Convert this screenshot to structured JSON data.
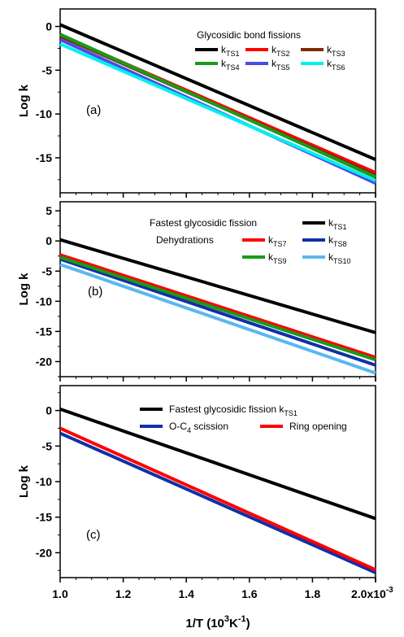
{
  "chart_data": [
    {
      "type": "line",
      "panel_label": "(a)",
      "ylabel": "Log k",
      "xlim": [
        1.0,
        2.0
      ],
      "ylim": [
        -19,
        2
      ],
      "yticks": [
        0,
        -5,
        -10,
        -15
      ],
      "ytick_labels": [
        "0",
        "-5",
        "-10",
        "-15"
      ],
      "legend": {
        "title": "Glycosidic bond fissions",
        "placement": "top-right"
      },
      "series": [
        {
          "name": "k",
          "sub": "TS1",
          "color": "#000000",
          "x": [
            1.0,
            2.0
          ],
          "y": [
            0.2,
            -15.2
          ]
        },
        {
          "name": "k",
          "sub": "TS2",
          "color": "#ff0000",
          "x": [
            1.0,
            2.0
          ],
          "y": [
            -1.0,
            -16.7
          ]
        },
        {
          "name": "k",
          "sub": "TS3",
          "color": "#7b2e00",
          "x": [
            1.0,
            2.0
          ],
          "y": [
            -1.1,
            -17.0
          ]
        },
        {
          "name": "k",
          "sub": "TS4",
          "color": "#1a9a1a",
          "x": [
            1.0,
            2.0
          ],
          "y": [
            -0.9,
            -17.2
          ]
        },
        {
          "name": "k",
          "sub": "TS5",
          "color": "#4a4ae8",
          "x": [
            1.0,
            2.0
          ],
          "y": [
            -1.5,
            -17.9
          ]
        },
        {
          "name": "k",
          "sub": "TS6",
          "color": "#00f0f0",
          "x": [
            1.0,
            2.0
          ],
          "y": [
            -2.0,
            -17.6
          ]
        }
      ]
    },
    {
      "type": "line",
      "panel_label": "(b)",
      "ylabel": "Log k",
      "xlim": [
        1.0,
        2.0
      ],
      "ylim": [
        -22.5,
        6.5
      ],
      "yticks": [
        5,
        0,
        -5,
        -10,
        -15,
        -20
      ],
      "ytick_labels": [
        "5",
        "0",
        "-5",
        "-10",
        "-15",
        "-20"
      ],
      "legend": {
        "line1": "Fastest glycosidic fission",
        "line2": "Dehydrations",
        "placement": "top-right"
      },
      "series": [
        {
          "name": "k",
          "sub": "TS1",
          "color": "#000000",
          "x": [
            1.0,
            2.0
          ],
          "y": [
            0.2,
            -15.2
          ]
        },
        {
          "name": "k",
          "sub": "TS7",
          "color": "#ff0000",
          "x": [
            1.0,
            2.0
          ],
          "y": [
            -2.3,
            -19.3
          ]
        },
        {
          "name": "k",
          "sub": "TS8",
          "color": "#1030a8",
          "x": [
            1.0,
            2.0
          ],
          "y": [
            -3.0,
            -20.6
          ]
        },
        {
          "name": "k",
          "sub": "TS9",
          "color": "#1a9a1a",
          "x": [
            1.0,
            2.0
          ],
          "y": [
            -2.7,
            -19.7
          ]
        },
        {
          "name": "k",
          "sub": "TS10",
          "color": "#5ab8ee",
          "x": [
            1.0,
            2.0
          ],
          "y": [
            -3.9,
            -21.9
          ]
        }
      ]
    },
    {
      "type": "line",
      "panel_label": "(c)",
      "ylabel": "Log k",
      "xlabel": "1/T (10",
      "xlabel_sup1": "3",
      "xlabel_mid": "K",
      "xlabel_sup2": "-1",
      "xlabel_end": ")",
      "xlim": [
        1.0,
        2.0
      ],
      "ylim": [
        -23.5,
        3.5
      ],
      "yticks": [
        0,
        -5,
        -10,
        -15,
        -20
      ],
      "ytick_labels": [
        "0",
        "-5",
        "-10",
        "-15",
        "-20"
      ],
      "xticks": [
        1.0,
        1.2,
        1.4,
        1.6,
        1.8
      ],
      "xtick_labels": [
        "1.0",
        "1.2",
        "1.4",
        "1.6",
        "1.8"
      ],
      "x_last_tick_label": "2.0x10",
      "x_last_tick_exp": "-3",
      "legend": {
        "placement": "top-right"
      },
      "series": [
        {
          "name": "Fastest glycosidic  fission k",
          "sub": "TS1",
          "color": "#000000",
          "x": [
            1.0,
            2.0
          ],
          "y": [
            0.2,
            -15.2
          ]
        },
        {
          "name": "O-C",
          "sub": "4",
          "suffix": " scission",
          "color": "#1030a8",
          "x": [
            1.0,
            2.0
          ],
          "y": [
            -3.2,
            -22.8
          ]
        },
        {
          "name": "Ring opening",
          "sub": "",
          "color": "#ff0000",
          "x": [
            1.0,
            2.0
          ],
          "y": [
            -2.5,
            -22.4
          ]
        }
      ]
    }
  ]
}
